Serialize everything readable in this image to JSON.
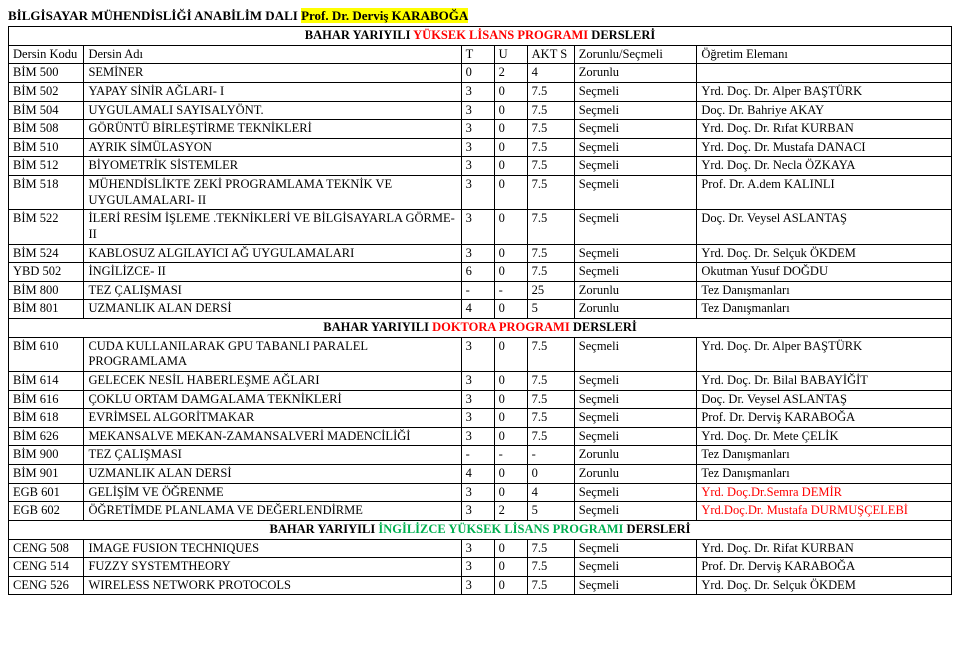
{
  "page_title_prefix": "BİLGİSAYAR MÜHENDİSLİĞİ ANABİLİM DALI ",
  "page_title_highlight": "Prof. Dr. Derviş KARABOĞA",
  "header": {
    "code": "Dersin Kodu",
    "name": "Dersin Adı",
    "t": "T",
    "u": "U",
    "akt": "AKT S",
    "zs": "Zorunlu/Seçmeli",
    "ogr": "Öğretim Elemanı"
  },
  "sections": [
    {
      "label_before": "BAHAR YARIYILI ",
      "label_colored": "YÜKSEK LİSANS PROGRAMI",
      "label_after": " DERSLERİ",
      "color_class": "red",
      "rows": [
        {
          "code": "BİM 500",
          "name": "SEMİNER",
          "t": "0",
          "u": "2",
          "akt": "4",
          "zs": "Zorunlu",
          "ogr": ""
        },
        {
          "code": "BİM 502",
          "name": "YAPAY SİNİR AĞLARI- I",
          "t": "3",
          "u": "0",
          "akt": "7.5",
          "zs": "Seçmeli",
          "ogr": "Yrd. Doç. Dr. Alper BAŞTÜRK"
        },
        {
          "code": "BİM 504",
          "name": "UYGULAMALI SAYISALYÖNT.",
          "t": "3",
          "u": "0",
          "akt": "7.5",
          "zs": "Seçmeli",
          "ogr": "Doç. Dr. Bahriye AKAY"
        },
        {
          "code": "BİM 508",
          "name": "GÖRÜNTÜ BİRLEŞTİRME TEKNİKLERİ",
          "t": "3",
          "u": "0",
          "akt": "7.5",
          "zs": "Seçmeli",
          "ogr": "Yrd. Doç. Dr. Rıfat KURBAN"
        },
        {
          "code": "BİM 510",
          "name": "AYRIK SİMÜLASYON",
          "t": "3",
          "u": "0",
          "akt": "7.5",
          "zs": "Seçmeli",
          "ogr": "Yrd. Doç. Dr. Mustafa DANACI"
        },
        {
          "code": "BİM 512",
          "name": "BİYOMETRİK SİSTEMLER",
          "t": "3",
          "u": "0",
          "akt": "7.5",
          "zs": "Seçmeli",
          "ogr": "Yrd. Doç. Dr. Necla ÖZKAYA"
        },
        {
          "code": "BİM 518",
          "name": "MÜHENDİSLİKTE ZEKİ PROGRAMLAMA TEKNİK VE UYGULAMALARI- II",
          "t": "3",
          "u": "0",
          "akt": "7.5",
          "zs": "Seçmeli",
          "ogr": "Prof. Dr. A.dem KALINLI"
        },
        {
          "code": "BİM 522",
          "name": "İLERİ RESİM İŞLEME .TEKNİKLERİ VE BİLGİSAYARLA GÖRME- II",
          "t": "3",
          "u": "0",
          "akt": "7.5",
          "zs": "Seçmeli",
          "ogr": "Doç. Dr. Veysel ASLANTAŞ"
        },
        {
          "code": "BİM 524",
          "name": "KABLOSUZ ALGILAYICI AĞ UYGULAMALARI",
          "t": "3",
          "u": "0",
          "akt": "7.5",
          "zs": "Seçmeli",
          "ogr": "Yrd. Doç. Dr. Selçuk ÖKDEM"
        },
        {
          "code": "YBD 502",
          "name": "İNGİLİZCE- II",
          "t": "6",
          "u": "0",
          "akt": "7.5",
          "zs": "Seçmeli",
          "ogr": "Okutman Yusuf DOĞDU"
        },
        {
          "code": "BİM 800",
          "name": "TEZ ÇALIŞMASI",
          "t": "-",
          "u": "-",
          "akt": "25",
          "zs": "Zorunlu",
          "ogr": "Tez Danışmanları"
        },
        {
          "code": "BİM 801",
          "name": "UZMANLIK ALAN DERSİ",
          "t": "4",
          "u": "0",
          "akt": "5",
          "zs": "Zorunlu",
          "ogr": "Tez Danışmanları"
        }
      ]
    },
    {
      "label_before": "BAHAR YARIYILI ",
      "label_colored": "DOKTORA PROGRAMI",
      "label_after": " DERSLERİ",
      "color_class": "red",
      "rows": [
        {
          "code": "BİM 610",
          "name": "CUDA KULLANILARAK GPU TABANLI PARALEL PROGRAMLAMA",
          "t": "3",
          "u": "0",
          "akt": "7.5",
          "zs": "Seçmeli",
          "ogr": "Yrd. Doç. Dr. Alper BAŞTÜRK"
        },
        {
          "code": "BİM 614",
          "name": "GELECEK NESİL HABERLEŞME AĞLARI",
          "t": "3",
          "u": "0",
          "akt": "7.5",
          "zs": "Seçmeli",
          "ogr": "Yrd. Doç. Dr. Bilal BABAYİĞİT"
        },
        {
          "code": "BİM 616",
          "name": "ÇOKLU ORTAM DAMGALAMA TEKNİKLERİ",
          "t": "3",
          "u": "0",
          "akt": "7.5",
          "zs": "Seçmeli",
          "ogr": "Doç. Dr. Veysel ASLANTAŞ"
        },
        {
          "code": "BİM 618",
          "name": "EVRİMSEL ALGORİTMAKAR",
          "t": "3",
          "u": "0",
          "akt": "7.5",
          "zs": "Seçmeli",
          "ogr": "Prof. Dr. Derviş KARABOĞA"
        },
        {
          "code": "BİM 626",
          "name": "MEKANSALVE MEKAN-ZAMANSALVERİ MADENCİLİĞİ",
          "t": "3",
          "u": "0",
          "akt": "7.5",
          "zs": "Seçmeli",
          "ogr": "Yrd. Doç. Dr. Mete ÇELİK"
        },
        {
          "code": "BİM 900",
          "name": "TEZ ÇALIŞMASI",
          "t": "-",
          "u": "-",
          "akt": "-",
          "zs": "Zorunlu",
          "ogr": "Tez Danışmanları"
        },
        {
          "code": "BİM 901",
          "name": "UZMANLIK ALAN DERSİ",
          "t": "4",
          "u": "0",
          "akt": "0",
          "zs": "Zorunlu",
          "ogr": "Tez Danışmanları"
        },
        {
          "code": "EGB 601",
          "name": "GELİŞİM VE ÖĞRENME",
          "t": "3",
          "u": "0",
          "akt": "4",
          "zs": "Seçmeli",
          "ogr": "Yrd. Doç.Dr.Semra DEMİR",
          "ogr_red": true
        },
        {
          "code": "EGB 602",
          "name": "ÖĞRETİMDE PLANLAMA VE DEĞERLENDİRME",
          "t": "3",
          "u": "2",
          "akt": "5",
          "zs": "Seçmeli",
          "ogr": "Yrd.Doç.Dr. Mustafa DURMUŞÇELEBİ",
          "ogr_red": true
        }
      ]
    },
    {
      "label_before": "BAHAR YARIYILI ",
      "label_colored": "İNGİLİZCE YÜKSEK LİSANS PROGRAMI",
      "label_after": " DERSLERİ",
      "color_class": "green",
      "rows": [
        {
          "code": "CENG 508",
          "name": "IMAGE FUSION TECHNIQUES",
          "t": "3",
          "u": "0",
          "akt": "7.5",
          "zs": "Seçmeli",
          "ogr": "Yrd. Doç. Dr. Rifat KURBAN"
        },
        {
          "code": "CENG 514",
          "name": "FUZZY SYSTEMTHEORY",
          "t": "3",
          "u": "0",
          "akt": "7.5",
          "zs": "Seçmeli",
          "ogr": "Prof. Dr. Derviş KARABOĞA"
        },
        {
          "code": "CENG 526",
          "name": "WIRELESS NETWORK PROTOCOLS",
          "t": "3",
          "u": "0",
          "akt": "7.5",
          "zs": "Seçmeli",
          "ogr": "Yrd. Doç. Dr. Selçuk ÖKDEM"
        }
      ]
    }
  ]
}
